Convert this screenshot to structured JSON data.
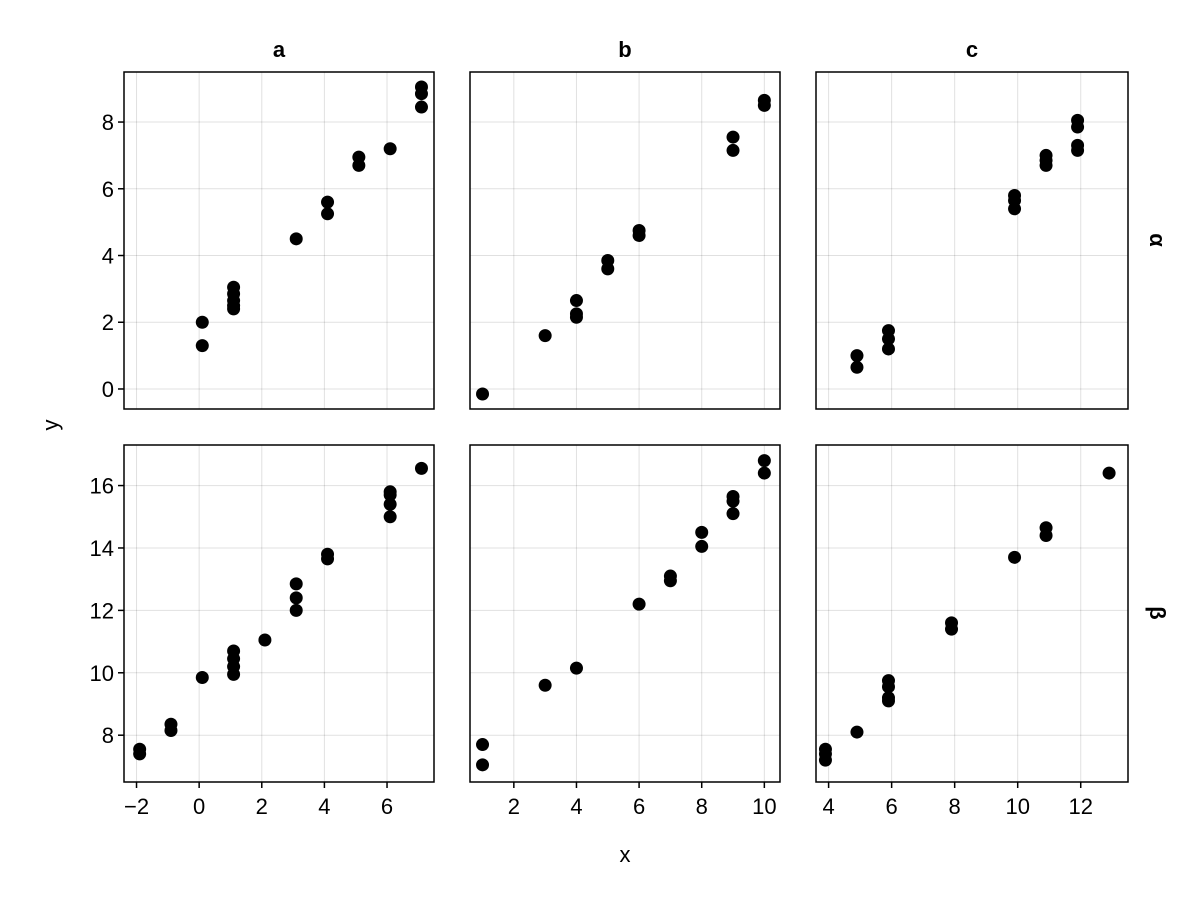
{
  "chart_data": {
    "type": "scatter",
    "layout": "facet-grid",
    "xlabel": "x",
    "ylabel": "y",
    "columns": [
      "a",
      "b",
      "c"
    ],
    "rows": [
      "α",
      "β"
    ],
    "grid": true,
    "legend": "none",
    "marker_color": "#000000",
    "column_x_axes": [
      {
        "xlim": [
          -2.4,
          7.5
        ],
        "ticks": [
          -2,
          0,
          2,
          4,
          6
        ],
        "tick_labels": [
          "−2",
          "0",
          "2",
          "4",
          "6"
        ]
      },
      {
        "xlim": [
          0.6,
          10.5
        ],
        "ticks": [
          2,
          4,
          6,
          8,
          10
        ],
        "tick_labels": [
          "2",
          "4",
          "6",
          "8",
          "10"
        ]
      },
      {
        "xlim": [
          3.6,
          13.5
        ],
        "ticks": [
          4,
          6,
          8,
          10,
          12
        ],
        "tick_labels": [
          "4",
          "6",
          "8",
          "10",
          "12"
        ]
      }
    ],
    "row_y_axes": [
      {
        "ylim": [
          -0.6,
          9.5
        ],
        "ticks": [
          0,
          2,
          4,
          6,
          8
        ],
        "tick_labels": [
          "0",
          "2",
          "4",
          "6",
          "8"
        ]
      },
      {
        "ylim": [
          6.5,
          17.3
        ],
        "ticks": [
          8,
          10,
          12,
          14,
          16
        ],
        "tick_labels": [
          "8",
          "10",
          "12",
          "14",
          "16"
        ]
      }
    ],
    "panels": [
      {
        "row": 0,
        "col": 0,
        "points": [
          [
            0.1,
            2.0
          ],
          [
            0.1,
            1.3
          ],
          [
            1.1,
            3.05
          ],
          [
            1.1,
            2.85
          ],
          [
            1.1,
            2.65
          ],
          [
            1.1,
            2.5
          ],
          [
            1.1,
            2.4
          ],
          [
            3.1,
            4.5
          ],
          [
            4.1,
            5.6
          ],
          [
            4.1,
            5.25
          ],
          [
            5.1,
            6.95
          ],
          [
            5.1,
            6.7
          ],
          [
            6.1,
            7.2
          ],
          [
            7.1,
            9.05
          ],
          [
            7.1,
            8.85
          ],
          [
            7.1,
            8.45
          ]
        ]
      },
      {
        "row": 0,
        "col": 1,
        "points": [
          [
            1.0,
            -0.15
          ],
          [
            3.0,
            1.6
          ],
          [
            4.0,
            2.65
          ],
          [
            4.0,
            2.25
          ],
          [
            4.0,
            2.15
          ],
          [
            5.0,
            3.85
          ],
          [
            5.0,
            3.6
          ],
          [
            6.0,
            4.75
          ],
          [
            6.0,
            4.6
          ],
          [
            9.0,
            7.55
          ],
          [
            9.0,
            7.15
          ],
          [
            10.0,
            8.65
          ],
          [
            10.0,
            8.5
          ]
        ]
      },
      {
        "row": 0,
        "col": 2,
        "points": [
          [
            4.9,
            1.0
          ],
          [
            4.9,
            0.65
          ],
          [
            5.9,
            1.75
          ],
          [
            5.9,
            1.5
          ],
          [
            5.9,
            1.2
          ],
          [
            9.9,
            5.8
          ],
          [
            9.9,
            5.65
          ],
          [
            9.9,
            5.4
          ],
          [
            10.9,
            7.0
          ],
          [
            10.9,
            6.85
          ],
          [
            10.9,
            6.7
          ],
          [
            11.9,
            8.05
          ],
          [
            11.9,
            7.85
          ],
          [
            11.9,
            7.3
          ],
          [
            11.9,
            7.15
          ]
        ]
      },
      {
        "row": 1,
        "col": 0,
        "points": [
          [
            -1.9,
            7.55
          ],
          [
            -1.9,
            7.4
          ],
          [
            -0.9,
            8.35
          ],
          [
            -0.9,
            8.15
          ],
          [
            0.1,
            9.85
          ],
          [
            1.1,
            10.7
          ],
          [
            1.1,
            10.45
          ],
          [
            1.1,
            10.2
          ],
          [
            1.1,
            9.95
          ],
          [
            2.1,
            11.05
          ],
          [
            3.1,
            12.85
          ],
          [
            3.1,
            12.4
          ],
          [
            3.1,
            12.0
          ],
          [
            4.1,
            13.8
          ],
          [
            4.1,
            13.65
          ],
          [
            6.1,
            15.8
          ],
          [
            6.1,
            15.7
          ],
          [
            6.1,
            15.4
          ],
          [
            6.1,
            15.0
          ],
          [
            7.1,
            16.55
          ]
        ]
      },
      {
        "row": 1,
        "col": 1,
        "points": [
          [
            1.0,
            7.7
          ],
          [
            1.0,
            7.05
          ],
          [
            3.0,
            9.6
          ],
          [
            4.0,
            10.15
          ],
          [
            6.0,
            12.2
          ],
          [
            7.0,
            13.1
          ],
          [
            7.0,
            12.95
          ],
          [
            8.0,
            14.5
          ],
          [
            8.0,
            14.05
          ],
          [
            9.0,
            15.65
          ],
          [
            9.0,
            15.5
          ],
          [
            9.0,
            15.1
          ],
          [
            10.0,
            16.8
          ],
          [
            10.0,
            16.4
          ]
        ]
      },
      {
        "row": 1,
        "col": 2,
        "points": [
          [
            3.9,
            7.55
          ],
          [
            3.9,
            7.4
          ],
          [
            3.9,
            7.2
          ],
          [
            4.9,
            8.1
          ],
          [
            5.9,
            9.75
          ],
          [
            5.9,
            9.55
          ],
          [
            5.9,
            9.2
          ],
          [
            5.9,
            9.1
          ],
          [
            7.9,
            11.6
          ],
          [
            7.9,
            11.4
          ],
          [
            9.9,
            13.7
          ],
          [
            10.9,
            14.65
          ],
          [
            10.9,
            14.4
          ],
          [
            12.9,
            16.4
          ]
        ]
      }
    ]
  }
}
